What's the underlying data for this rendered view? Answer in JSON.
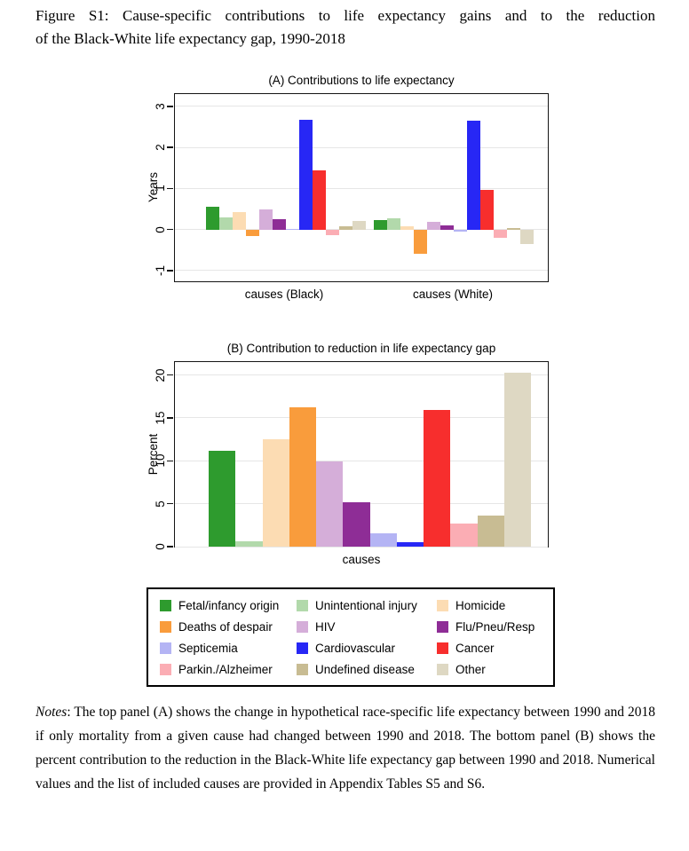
{
  "figure": {
    "caption_lines": [
      "Figure S1: Cause-specific contributions to life expectancy gains and to the reduction",
      "of the Black-White life expectancy gap, 1990-2018"
    ]
  },
  "chart_data": [
    {
      "type": "bar",
      "title": "(A) Contributions to life expectancy",
      "ylabel": "Years",
      "xlabel": "",
      "yticks": [
        -1,
        0,
        1,
        2,
        3
      ],
      "ylim": [
        -1.26,
        3.3
      ],
      "grid": true,
      "categories": [
        "Fetal/infancy origin",
        "Unintentional injury",
        "Homicide",
        "Deaths of despair",
        "HIV",
        "Flu/Pneu/Resp",
        "Septicemia",
        "Cardiovascular",
        "Cancer",
        "Parkin./Alzheimer",
        "Undefined disease",
        "Other"
      ],
      "colors": [
        "#2e9b2e",
        "#b2d9ab",
        "#fcdcb3",
        "#f99c3c",
        "#d5aed9",
        "#8e2d96",
        "#b4b4f4",
        "#2727f5",
        "#f72e2d",
        "#fbadb4",
        "#c8bc93",
        "#ded8c3"
      ],
      "series": [
        {
          "name": "causes (Black)",
          "values": [
            0.55,
            0.29,
            0.42,
            -0.16,
            0.48,
            0.26,
            0.02,
            2.67,
            1.45,
            -0.13,
            0.09,
            0.21
          ]
        },
        {
          "name": "causes (White)",
          "values": [
            0.23,
            0.27,
            0.07,
            -0.6,
            0.19,
            0.1,
            -0.04,
            2.66,
            0.97,
            -0.2,
            0.03,
            -0.35
          ]
        }
      ]
    },
    {
      "type": "bar",
      "title": "(B) Contribution to reduction in life expectancy gap",
      "ylabel": "Percent",
      "xlabel": "causes",
      "yticks": [
        0,
        5,
        10,
        15,
        20
      ],
      "ylim": [
        0,
        21.5
      ],
      "grid": true,
      "categories": [
        "Fetal/infancy origin",
        "Unintentional injury",
        "Homicide",
        "Deaths of despair",
        "HIV",
        "Flu/Pneu/Resp",
        "Septicemia",
        "Cardiovascular",
        "Cancer",
        "Parkin./Alzheimer",
        "Undefined disease",
        "Other"
      ],
      "colors": [
        "#2e9b2e",
        "#b2d9ab",
        "#fcdcb3",
        "#f99c3c",
        "#d5aed9",
        "#8e2d96",
        "#b4b4f4",
        "#2727f5",
        "#f72e2d",
        "#fbadb4",
        "#c8bc93",
        "#ded8c3"
      ],
      "values": [
        11.2,
        0.6,
        12.5,
        16.2,
        9.9,
        5.2,
        1.5,
        0.5,
        15.9,
        2.7,
        3.6,
        20.3
      ]
    }
  ],
  "legend": {
    "items": [
      {
        "label": "Fetal/infancy origin",
        "color": "#2e9b2e"
      },
      {
        "label": "Unintentional injury",
        "color": "#b2d9ab"
      },
      {
        "label": "Homicide",
        "color": "#fcdcb3"
      },
      {
        "label": "Deaths of despair",
        "color": "#f99c3c"
      },
      {
        "label": "HIV",
        "color": "#d5aed9"
      },
      {
        "label": "Flu/Pneu/Resp",
        "color": "#8e2d96"
      },
      {
        "label": "Septicemia",
        "color": "#b4b4f4"
      },
      {
        "label": "Cardiovascular",
        "color": "#2727f5"
      },
      {
        "label": "Cancer",
        "color": "#f72e2d"
      },
      {
        "label": "Parkin./Alzheimer",
        "color": "#fbadb4"
      },
      {
        "label": "Undefined disease",
        "color": "#c8bc93"
      },
      {
        "label": "Other",
        "color": "#ded8c3"
      }
    ]
  },
  "notes": {
    "label": "Notes",
    "body": ": The top panel (A) shows the change in hypothetical race-specific life expectancy between 1990 and 2018 if only mortality from a given cause had changed between 1990 and 2018. The bottom panel (B) shows the percent contribution to the reduction in the Black-White life expectancy gap between 1990 and 2018. Numerical values and the list of included causes are provided in Appendix Tables S5 and S6."
  }
}
